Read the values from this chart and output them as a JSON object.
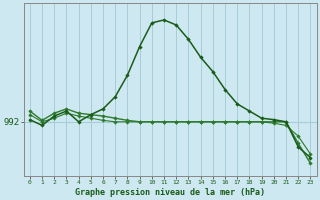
{
  "title": "Graphe pression niveau de la mer (hPa)",
  "bg_color": "#cde8f0",
  "plot_bg_color": "#cde8f0",
  "grid_color": "#a8cdd8",
  "x_ticks": [
    0,
    1,
    2,
    3,
    4,
    5,
    6,
    7,
    8,
    9,
    10,
    11,
    12,
    13,
    14,
    15,
    16,
    17,
    18,
    19,
    20,
    21,
    22,
    23
  ],
  "y_label_val": 992,
  "y_label_text": "992",
  "line1_color": "#1a5c1a",
  "line2_color": "#2d7a2d",
  "line3_color": "#2d7a2d",
  "line1_y": [
    992.3,
    991.5,
    992.8,
    993.5,
    992.0,
    993.0,
    993.8,
    995.5,
    998.5,
    1002.5,
    1005.8,
    1006.2,
    1005.5,
    1003.5,
    1001.0,
    999.0,
    996.5,
    994.5,
    993.5,
    992.5,
    992.3,
    992.0,
    988.5,
    987.0
  ],
  "line2_y": [
    993.0,
    992.0,
    992.5,
    993.2,
    992.8,
    992.5,
    992.2,
    992.0,
    992.0,
    992.0,
    992.0,
    992.0,
    992.0,
    992.0,
    992.0,
    992.0,
    992.0,
    992.0,
    992.0,
    992.0,
    991.8,
    991.5,
    990.0,
    987.5
  ],
  "line3_y": [
    993.5,
    992.2,
    993.2,
    993.8,
    993.2,
    993.0,
    992.8,
    992.5,
    992.2,
    992.0,
    992.0,
    992.0,
    992.0,
    992.0,
    992.0,
    992.0,
    992.0,
    992.0,
    992.0,
    992.0,
    992.0,
    992.0,
    989.0,
    986.2
  ],
  "ylim_min": 984.5,
  "ylim_max": 1008.5,
  "marker": "D",
  "marker_size": 2.2,
  "linewidth1": 1.1,
  "linewidth2": 0.8,
  "linewidth3": 1.0
}
